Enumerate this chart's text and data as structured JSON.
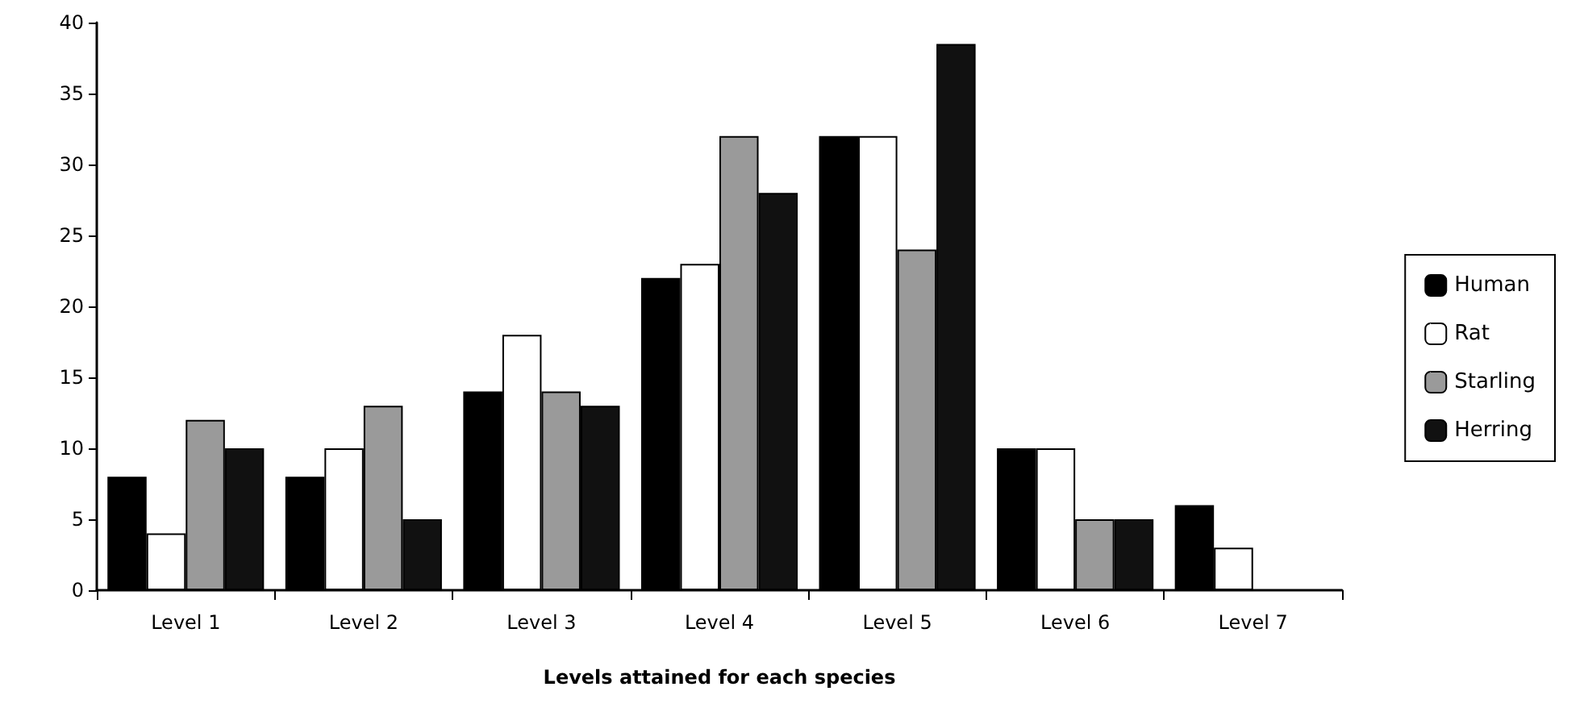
{
  "chart_data": {
    "type": "bar",
    "xlabel": "Levels attained for each species",
    "categories": [
      "Level 1",
      "Level 2",
      "Level 3",
      "Level 4",
      "Level 5",
      "Level 6",
      "Level 7"
    ],
    "series": [
      {
        "name": "Human",
        "color": "#000000",
        "values": [
          8,
          8,
          14,
          22,
          32,
          10,
          6
        ]
      },
      {
        "name": "Rat",
        "color": "#ffffff",
        "values": [
          4,
          10,
          18,
          23,
          32,
          10,
          3
        ]
      },
      {
        "name": "Starling",
        "color": "#9a9a9a",
        "values": [
          12,
          13,
          14,
          32,
          24,
          5,
          null
        ]
      },
      {
        "name": "Herring",
        "color": "#111111",
        "values": [
          10,
          5,
          13,
          28,
          38.5,
          5,
          null
        ]
      }
    ],
    "ylim": [
      0,
      40
    ],
    "yticks": [
      0,
      5,
      10,
      15,
      20,
      25,
      30,
      35,
      40
    ],
    "grid": false,
    "legend": "right"
  }
}
